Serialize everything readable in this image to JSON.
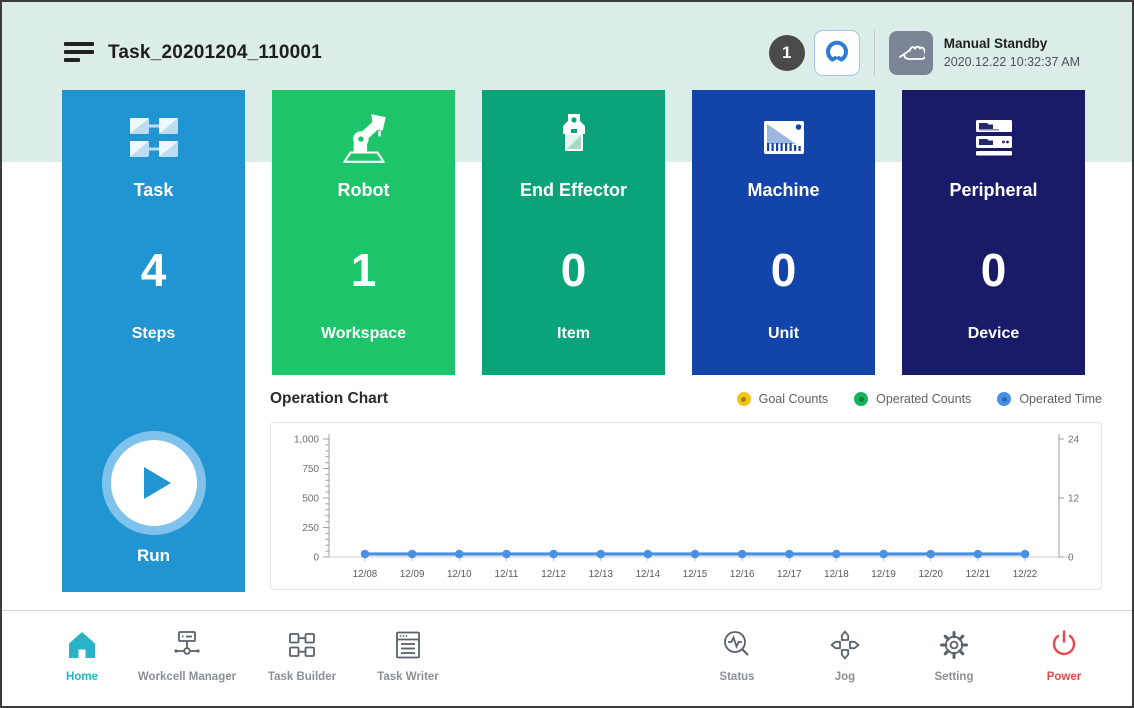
{
  "app": {
    "title": "Task_20201204_110001",
    "badge_count": "1",
    "mode_label": "Manual Standby",
    "datetime": "2020.12.22 10:32:37 AM",
    "run_label": "Run"
  },
  "cards": [
    {
      "label": "Task",
      "value": "4",
      "unit": "Steps",
      "color": "#2095d2"
    },
    {
      "label": "Robot",
      "value": "1",
      "unit": "Workspace",
      "color": "#1ec469"
    },
    {
      "label": "End Effector",
      "value": "0",
      "unit": "Item",
      "color": "#0ba478"
    },
    {
      "label": "Machine",
      "value": "0",
      "unit": "Unit",
      "color": "#1244aa"
    },
    {
      "label": "Peripheral",
      "value": "0",
      "unit": "Device",
      "color": "#191b69"
    }
  ],
  "chart_data": {
    "type": "line",
    "title": "Operation Chart",
    "x": [
      "12/08",
      "12/09",
      "12/10",
      "12/11",
      "12/12",
      "12/13",
      "12/14",
      "12/15",
      "12/16",
      "12/17",
      "12/18",
      "12/19",
      "12/20",
      "12/21",
      "12/22"
    ],
    "series": [
      {
        "name": "Goal Counts",
        "color": "#f3c517",
        "dot_color": "#a08408",
        "axis": "left",
        "values": [
          0,
          0,
          0,
          0,
          0,
          0,
          0,
          0,
          0,
          0,
          0,
          0,
          0,
          0,
          0
        ],
        "drawn": false
      },
      {
        "name": "Operated Counts",
        "color": "#17b25c",
        "dot_color": "#0c7e3e",
        "axis": "left",
        "values": [
          0,
          0,
          0,
          0,
          0,
          0,
          0,
          0,
          0,
          0,
          0,
          0,
          0,
          0,
          0
        ],
        "drawn": false
      },
      {
        "name": "Operated Time",
        "color": "#4a90e2",
        "dot_color": "#2a66b8",
        "axis": "right",
        "values": [
          0,
          0,
          0,
          0,
          0,
          0,
          0,
          0,
          0,
          0,
          0,
          0,
          0,
          0,
          0
        ],
        "drawn": true
      }
    ],
    "left_axis": {
      "min": 0,
      "max": 1000,
      "minor_step": 50,
      "major_step": 250,
      "ticks": [
        {
          "v": 0,
          "label": "0"
        },
        {
          "v": 250,
          "label": "250"
        },
        {
          "v": 500,
          "label": "500"
        },
        {
          "v": 750,
          "label": "750"
        },
        {
          "v": 1000,
          "label": "1,000"
        }
      ]
    },
    "right_axis": {
      "min": 0,
      "max": 24,
      "ticks": [
        {
          "v": 0,
          "label": "0"
        },
        {
          "v": 12,
          "label": "12"
        },
        {
          "v": 24,
          "label": "24"
        }
      ]
    },
    "grid": false,
    "legend_position": "top-right"
  },
  "nav": {
    "left": [
      {
        "label": "Home"
      },
      {
        "label": "Workcell Manager"
      },
      {
        "label": "Task Builder"
      },
      {
        "label": "Task Writer"
      }
    ],
    "right": [
      {
        "label": "Status"
      },
      {
        "label": "Jog"
      },
      {
        "label": "Setting"
      },
      {
        "label": "Power"
      }
    ]
  }
}
